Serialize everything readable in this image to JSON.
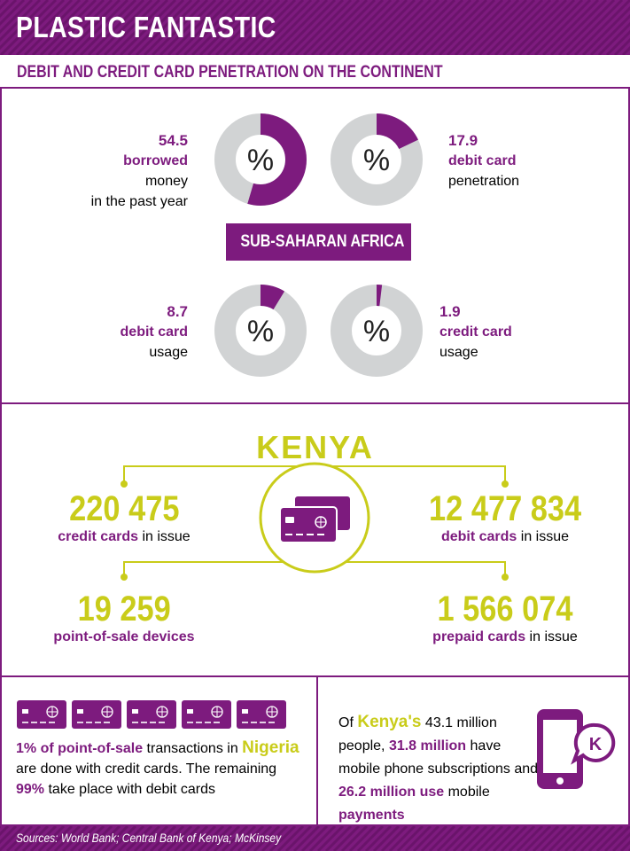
{
  "header": {
    "title": "PLASTIC FANTASTIC"
  },
  "subtitle": "DEBIT AND CREDIT CARD PENETRATION ON THE CONTINENT",
  "colors": {
    "purple": "#7d1b7e",
    "lime": "#c9cc1a",
    "grey": "#d1d3d4"
  },
  "region_label": "SUB-SAHARAN AFRICA",
  "percent_symbol": "%",
  "donuts": [
    {
      "value": 54.5,
      "value_text": "54.5",
      "highlight": "borrowed",
      "rest": " money",
      "line2": "in the past year"
    },
    {
      "value": 17.9,
      "value_text": "17.9",
      "highlight": "debit card",
      "rest": "",
      "line2": "penetration"
    },
    {
      "value": 8.7,
      "value_text": "8.7",
      "highlight": "debit card",
      "rest": "",
      "line2": "usage"
    },
    {
      "value": 1.9,
      "value_text": "1.9",
      "highlight": "credit card",
      "rest": "",
      "line2": "usage"
    }
  ],
  "kenya": {
    "title": "KENYA",
    "stats": [
      {
        "value": "220 475",
        "highlight": "credit cards",
        "rest": " in issue"
      },
      {
        "value": "12 477 834",
        "highlight": "debit cards",
        "rest": " in issue"
      },
      {
        "value": "19 259",
        "highlight": "point-of-sale devices",
        "rest": ""
      },
      {
        "value": "1 566 074",
        "highlight": "prepaid cards",
        "rest": " in issue"
      }
    ]
  },
  "nigeria": {
    "card_count": 5,
    "text": {
      "p1": "1% of point-of-sale",
      "p2": " transactions in ",
      "p3": "Nigeria",
      "p4": " are done with credit cards. The remaining ",
      "p5": "99%",
      "p6": " take place with debit cards"
    }
  },
  "mobile": {
    "icon_letter": "K",
    "text": {
      "p1": "Of ",
      "p2": "Kenya's",
      "p3": " 43.1 million people, ",
      "p4": "31.8 million",
      "p5": " have mobile phone subscriptions and ",
      "p6": "26.2 million use",
      "p7": " mobile ",
      "p8": "payments"
    }
  },
  "footer": {
    "sources": "Sources: World Bank; Central Bank of Kenya; McKinsey"
  }
}
